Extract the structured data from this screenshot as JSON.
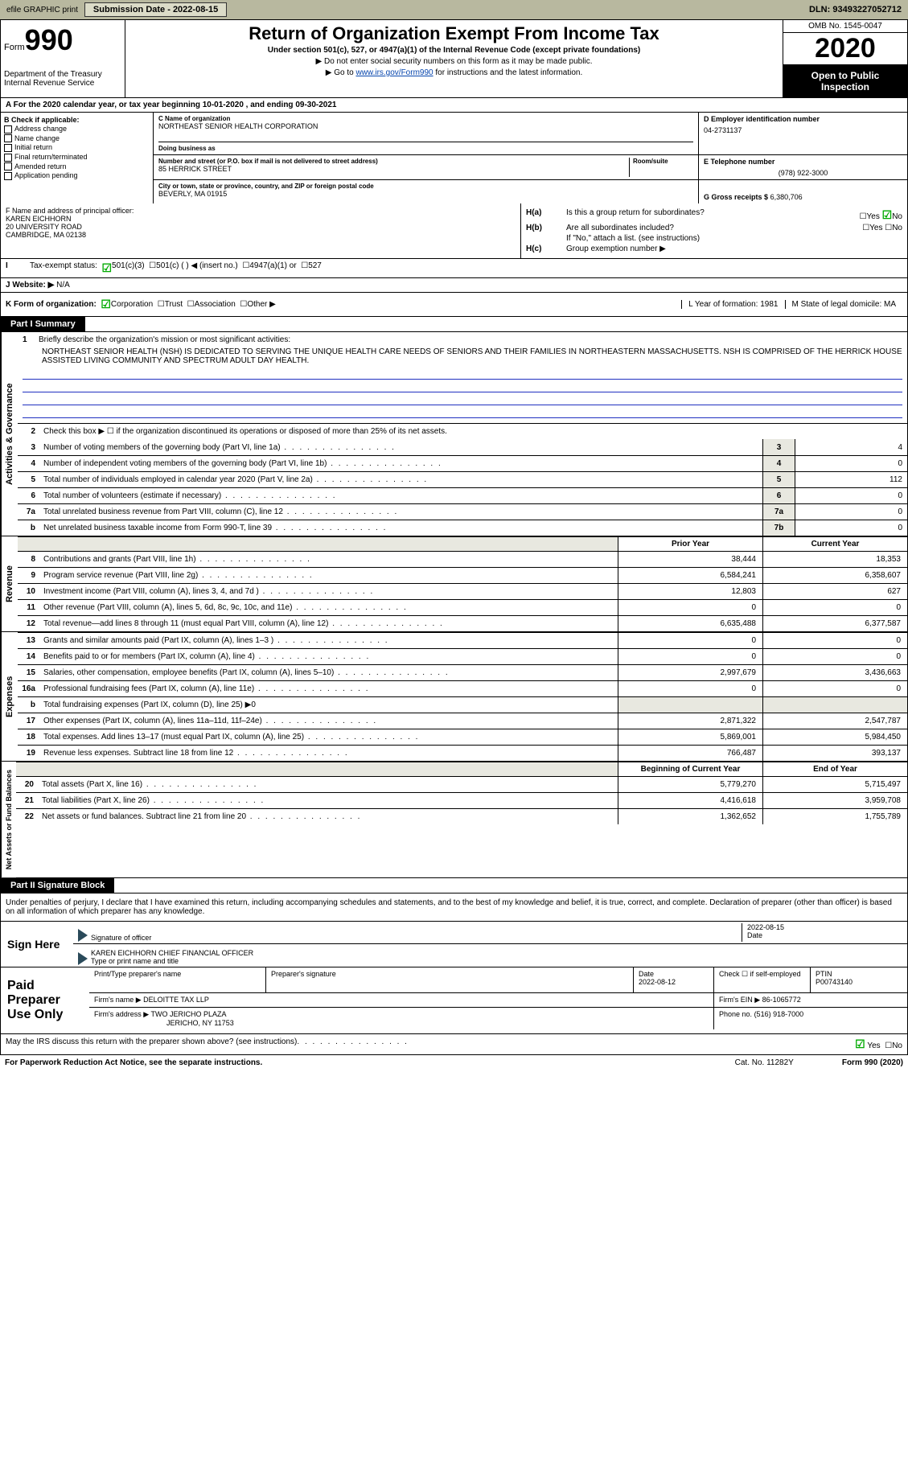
{
  "topbar": {
    "efile": "efile GRAPHIC print",
    "submission_label": "Submission Date - 2022-08-15",
    "dln": "DLN: 93493227052712"
  },
  "header": {
    "form_label": "Form",
    "form_num": "990",
    "dept": "Department of the Treasury",
    "irs": "Internal Revenue Service",
    "title": "Return of Organization Exempt From Income Tax",
    "subtitle": "Under section 501(c), 527, or 4947(a)(1) of the Internal Revenue Code (except private foundations)",
    "arrow1": "▶ Do not enter social security numbers on this form as it may be made public.",
    "arrow2_pre": "▶ Go to ",
    "arrow2_link": "www.irs.gov/Form990",
    "arrow2_post": " for instructions and the latest information.",
    "omb": "OMB No. 1545-0047",
    "year": "2020",
    "open": "Open to Public Inspection"
  },
  "row_a": "A For the 2020 calendar year, or tax year beginning 10-01-2020  , and ending 09-30-2021",
  "section_b": {
    "label": "B Check if applicable:",
    "items": [
      "Address change",
      "Name change",
      "Initial return",
      "Final return/terminated",
      "Amended return",
      "Application pending"
    ]
  },
  "section_c": {
    "name_label": "C Name of organization",
    "name": "NORTHEAST SENIOR HEALTH CORPORATION",
    "dba_label": "Doing business as",
    "addr_label": "Number and street (or P.O. box if mail is not delivered to street address)",
    "addr": "85 HERRICK STREET",
    "room_label": "Room/suite",
    "city_label": "City or town, state or province, country, and ZIP or foreign postal code",
    "city": "BEVERLY, MA  01915"
  },
  "section_d": {
    "ein_label": "D Employer identification number",
    "ein": "04-2731137",
    "phone_label": "E Telephone number",
    "phone": "(978) 922-3000",
    "gross_label": "G Gross receipts $",
    "gross": "6,380,706"
  },
  "section_f": {
    "label": "F  Name and address of principal officer:",
    "name": "KAREN EICHHORN",
    "addr1": "20 UNIVERSITY ROAD",
    "addr2": "CAMBRIDGE, MA  02138"
  },
  "section_h": {
    "ha": "Is this a group return for subordinates?",
    "hb": "Are all subordinates included?",
    "hnote": "If \"No,\" attach a list. (see instructions)",
    "hc": "Group exemption number ▶"
  },
  "row_i": {
    "label": "Tax-exempt status:",
    "opts": [
      "501(c)(3)",
      "501(c) (  ) ◀ (insert no.)",
      "4947(a)(1) or",
      "527"
    ]
  },
  "row_j": {
    "label": "J Website: ▶",
    "val": "N/A"
  },
  "row_k": {
    "label": "K Form of organization:",
    "opts": [
      "Corporation",
      "Trust",
      "Association",
      "Other ▶"
    ],
    "l": "L Year of formation: 1981",
    "m": "M State of legal domicile: MA"
  },
  "part1": {
    "hdr": "Part I    Summary",
    "line1_label": "Briefly describe the organization's mission or most significant activities:",
    "mission": "NORTHEAST SENIOR HEALTH (NSH) IS DEDICATED TO SERVING THE UNIQUE HEALTH CARE NEEDS OF SENIORS AND THEIR FAMILIES IN NORTHEASTERN MASSACHUSETTS. NSH IS COMPRISED OF THE HERRICK HOUSE ASSISTED LIVING COMMUNITY AND SPECTRUM ADULT DAY HEALTH.",
    "line2": "Check this box ▶ ☐ if the organization discontinued its operations or disposed of more than 25% of its net assets.",
    "gov_lines": [
      {
        "n": "3",
        "t": "Number of voting members of the governing body (Part VI, line 1a)",
        "box": "3",
        "v": "4"
      },
      {
        "n": "4",
        "t": "Number of independent voting members of the governing body (Part VI, line 1b)",
        "box": "4",
        "v": "0"
      },
      {
        "n": "5",
        "t": "Total number of individuals employed in calendar year 2020 (Part V, line 2a)",
        "box": "5",
        "v": "112"
      },
      {
        "n": "6",
        "t": "Total number of volunteers (estimate if necessary)",
        "box": "6",
        "v": "0"
      },
      {
        "n": "7a",
        "t": "Total unrelated business revenue from Part VIII, column (C), line 12",
        "box": "7a",
        "v": "0"
      },
      {
        "n": "b",
        "t": "Net unrelated business taxable income from Form 990-T, line 39",
        "box": "7b",
        "v": "0"
      }
    ],
    "col_hdrs": {
      "prior": "Prior Year",
      "current": "Current Year"
    },
    "rev_lines": [
      {
        "n": "8",
        "t": "Contributions and grants (Part VIII, line 1h)",
        "p": "38,444",
        "c": "18,353"
      },
      {
        "n": "9",
        "t": "Program service revenue (Part VIII, line 2g)",
        "p": "6,584,241",
        "c": "6,358,607"
      },
      {
        "n": "10",
        "t": "Investment income (Part VIII, column (A), lines 3, 4, and 7d )",
        "p": "12,803",
        "c": "627"
      },
      {
        "n": "11",
        "t": "Other revenue (Part VIII, column (A), lines 5, 6d, 8c, 9c, 10c, and 11e)",
        "p": "0",
        "c": "0"
      },
      {
        "n": "12",
        "t": "Total revenue—add lines 8 through 11 (must equal Part VIII, column (A), line 12)",
        "p": "6,635,488",
        "c": "6,377,587"
      }
    ],
    "exp_lines": [
      {
        "n": "13",
        "t": "Grants and similar amounts paid (Part IX, column (A), lines 1–3 )",
        "p": "0",
        "c": "0"
      },
      {
        "n": "14",
        "t": "Benefits paid to or for members (Part IX, column (A), line 4)",
        "p": "0",
        "c": "0"
      },
      {
        "n": "15",
        "t": "Salaries, other compensation, employee benefits (Part IX, column (A), lines 5–10)",
        "p": "2,997,679",
        "c": "3,436,663"
      },
      {
        "n": "16a",
        "t": "Professional fundraising fees (Part IX, column (A), line 11e)",
        "p": "0",
        "c": "0"
      },
      {
        "n": "b",
        "t": "Total fundraising expenses (Part IX, column (D), line 25) ▶0",
        "p": "",
        "c": ""
      },
      {
        "n": "17",
        "t": "Other expenses (Part IX, column (A), lines 11a–11d, 11f–24e)",
        "p": "2,871,322",
        "c": "2,547,787"
      },
      {
        "n": "18",
        "t": "Total expenses. Add lines 13–17 (must equal Part IX, column (A), line 25)",
        "p": "5,869,001",
        "c": "5,984,450"
      },
      {
        "n": "19",
        "t": "Revenue less expenses. Subtract line 18 from line 12",
        "p": "766,487",
        "c": "393,137"
      }
    ],
    "na_hdrs": {
      "beg": "Beginning of Current Year",
      "end": "End of Year"
    },
    "na_lines": [
      {
        "n": "20",
        "t": "Total assets (Part X, line 16)",
        "p": "5,779,270",
        "c": "5,715,497"
      },
      {
        "n": "21",
        "t": "Total liabilities (Part X, line 26)",
        "p": "4,416,618",
        "c": "3,959,708"
      },
      {
        "n": "22",
        "t": "Net assets or fund balances. Subtract line 21 from line 20",
        "p": "1,362,652",
        "c": "1,755,789"
      }
    ],
    "vtabs": {
      "gov": "Activities & Governance",
      "rev": "Revenue",
      "exp": "Expenses",
      "na": "Net Assets or Fund Balances"
    }
  },
  "part2": {
    "hdr": "Part II    Signature Block",
    "intro": "Under penalties of perjury, I declare that I have examined this return, including accompanying schedules and statements, and to the best of my knowledge and belief, it is true, correct, and complete. Declaration of preparer (other than officer) is based on all information of which preparer has any knowledge.",
    "sign_here": "Sign Here",
    "sig_officer": "Signature of officer",
    "sig_date": "2022-08-15",
    "date_label": "Date",
    "officer_name": "KAREN EICHHORN  CHIEF FINANCIAL OFFICER",
    "type_name": "Type or print name and title",
    "paid_prep": "Paid Preparer Use Only",
    "prep_hdrs": {
      "name": "Print/Type preparer's name",
      "sig": "Preparer's signature",
      "date": "Date",
      "check": "Check ☐ if self-employed",
      "ptin": "PTIN"
    },
    "prep_date": "2022-08-12",
    "ptin": "P00743140",
    "firm_name_label": "Firm's name    ▶",
    "firm_name": "DELOITTE TAX LLP",
    "firm_ein_label": "Firm's EIN ▶",
    "firm_ein": "86-1065772",
    "firm_addr_label": "Firm's address ▶",
    "firm_addr1": "TWO JERICHO PLAZA",
    "firm_addr2": "JERICHO, NY  11753",
    "firm_phone_label": "Phone no.",
    "firm_phone": "(516) 918-7000",
    "discuss": "May the IRS discuss this return with the preparer shown above? (see instructions)",
    "yes": "Yes",
    "no": "No"
  },
  "footer": {
    "pra": "For Paperwork Reduction Act Notice, see the separate instructions.",
    "cat": "Cat. No. 11282Y",
    "form": "Form 990 (2020)"
  },
  "colors": {
    "topbar_bg": "#b8b89f",
    "link": "#0645ad",
    "blueline": "#2030c0",
    "shade": "#e8e8e0"
  }
}
